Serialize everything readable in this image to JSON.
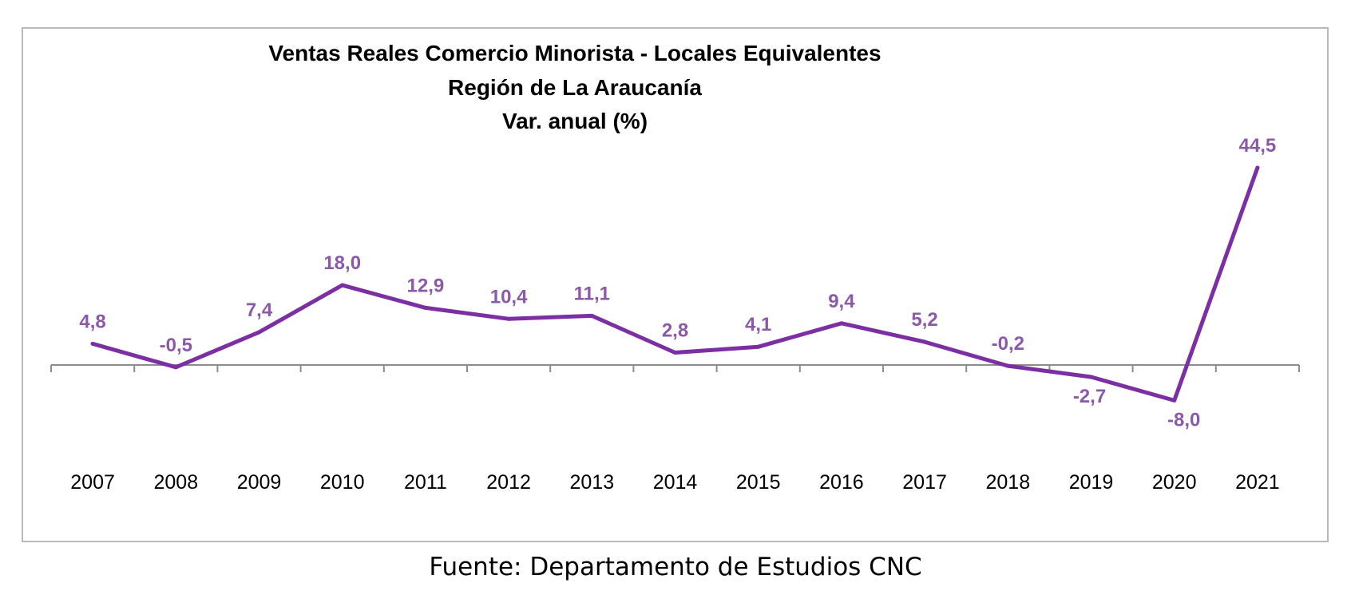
{
  "chart_data": {
    "type": "line",
    "title": [
      "Ventas Reales Comercio Minorista - Locales Equivalentes",
      "Región de La Araucanía",
      "Var. anual (%)"
    ],
    "xlabel": "",
    "ylabel": "",
    "categories": [
      "2007",
      "2008",
      "2009",
      "2010",
      "2011",
      "2012",
      "2013",
      "2014",
      "2015",
      "2016",
      "2017",
      "2018",
      "2019",
      "2020",
      "2021"
    ],
    "series": [
      {
        "values": [
          4.8,
          -0.5,
          7.4,
          18.0,
          12.9,
          10.4,
          11.1,
          2.8,
          4.1,
          9.4,
          5.2,
          -0.2,
          -2.7,
          -8.0,
          44.5
        ],
        "labels": [
          "4,8",
          "-0,5",
          "7,4",
          "18,0",
          "12,9",
          "10,4",
          "11,1",
          "2,8",
          "4,1",
          "9,4",
          "5,2",
          "-0,2",
          "-2,7",
          "-8,0",
          "44,5"
        ],
        "color": "#7b2fa3"
      }
    ],
    "ylim": [
      -15,
      50
    ],
    "grid": false,
    "legend": "none",
    "axis_color": "#8c8c8c",
    "label_color": "#8a5aa8"
  },
  "source": "Fuente: Departamento de Estudios CNC"
}
